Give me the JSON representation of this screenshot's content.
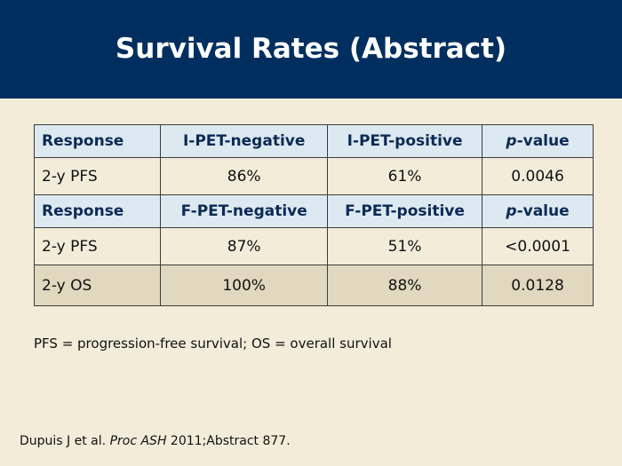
{
  "slide": {
    "title": "Survival Rates (Abstract)"
  },
  "table": {
    "section1": {
      "headers": {
        "response": "Response",
        "negative": "I-PET-negative",
        "positive": "I-PET-positive",
        "p_italic": "p",
        "p_rest": "-value"
      },
      "rows": [
        {
          "label": "2-y PFS",
          "negative": "86%",
          "positive": "61%",
          "pvalue": "0.0046"
        }
      ]
    },
    "section2": {
      "headers": {
        "response": "Response",
        "negative": "F-PET-negative",
        "positive": "F-PET-positive",
        "p_italic": "p",
        "p_rest": "-value"
      },
      "rows": [
        {
          "label": "2-y PFS",
          "negative": "87%",
          "positive": "51%",
          "pvalue": "<0.0001"
        },
        {
          "label": "2-y OS",
          "negative": "100%",
          "positive": "88%",
          "pvalue": "0.0128"
        }
      ]
    }
  },
  "footnote": "PFS = progression-free survival; OS = overall survival",
  "citation": {
    "authors": "Dupuis J et al.",
    "journal": "Proc ASH",
    "details": "2011;Abstract 877."
  },
  "colors": {
    "title_bar": "#002f5f",
    "background": "#f2ecd9",
    "header_row": "#dde9f1",
    "header_text": "#0b2a55",
    "shaded_row": "#e0d8bf"
  }
}
